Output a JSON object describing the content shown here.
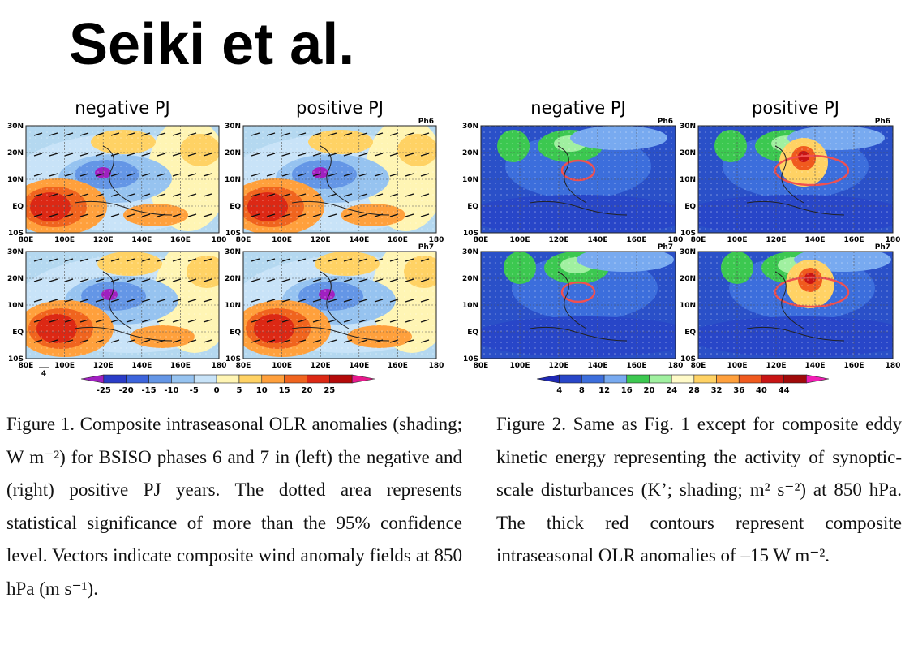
{
  "header": {
    "title": "Seiki et al."
  },
  "figures": [
    {
      "panel_titles": [
        "negative PJ",
        "positive PJ"
      ],
      "phases": [
        "Ph6",
        "Ph7"
      ],
      "lat_labels": [
        "30N",
        "20N",
        "10N",
        "EQ",
        "10S"
      ],
      "lon_labels": [
        "80E",
        "100E",
        "120E",
        "140E",
        "160E",
        "180"
      ],
      "vector_ref": "4",
      "colorbar_labels": [
        "-25",
        "-20",
        "-15",
        "-10",
        "-5",
        "0",
        "5",
        "10",
        "15",
        "20",
        "25"
      ],
      "colorbar_colors": [
        "#a020c0",
        "#2a3cc8",
        "#3c64dc",
        "#6496e6",
        "#96c3f0",
        "#c8e3f8",
        "#fff5b4",
        "#ffd264",
        "#ffa03c",
        "#f0641e",
        "#dc2814",
        "#b40a0a",
        "#e6198c"
      ],
      "caption": "Figure 1. Composite intraseasonal OLR anomalies (shading; W m⁻²) for BSISO phases 6 and 7 in (left) the negative and (right) positive PJ years. The dotted area represents statistical significance of more than the 95% confidence level. Vectors indicate composite wind anomaly fields at 850 hPa (m s⁻¹)."
    },
    {
      "panel_titles": [
        "negative PJ",
        "positive PJ"
      ],
      "phases": [
        "Ph6",
        "Ph7"
      ],
      "lat_labels": [
        "30N",
        "20N",
        "10N",
        "EQ",
        "10S"
      ],
      "lon_labels": [
        "80E",
        "100E",
        "120E",
        "140E",
        "160E",
        "180"
      ],
      "colorbar_labels": [
        "4",
        "8",
        "12",
        "16",
        "20",
        "24",
        "28",
        "32",
        "36",
        "40",
        "44"
      ],
      "colorbar_colors": [
        "#1e28b4",
        "#2846c8",
        "#3c6edc",
        "#78aaf0",
        "#3cc850",
        "#a0f0a0",
        "#fffac8",
        "#ffd264",
        "#ffa03c",
        "#f05a1e",
        "#c81414",
        "#a00a0a",
        "#f01eb4"
      ],
      "caption": "Figure 2. Same as Fig. 1 except for composite eddy kinetic energy representing the activity of synoptic-scale disturbances (K’; shading; m² s⁻²) at 850 hPa. The thick red contours represent composite intraseasonal OLR anomalies of –15 W m⁻²."
    }
  ]
}
